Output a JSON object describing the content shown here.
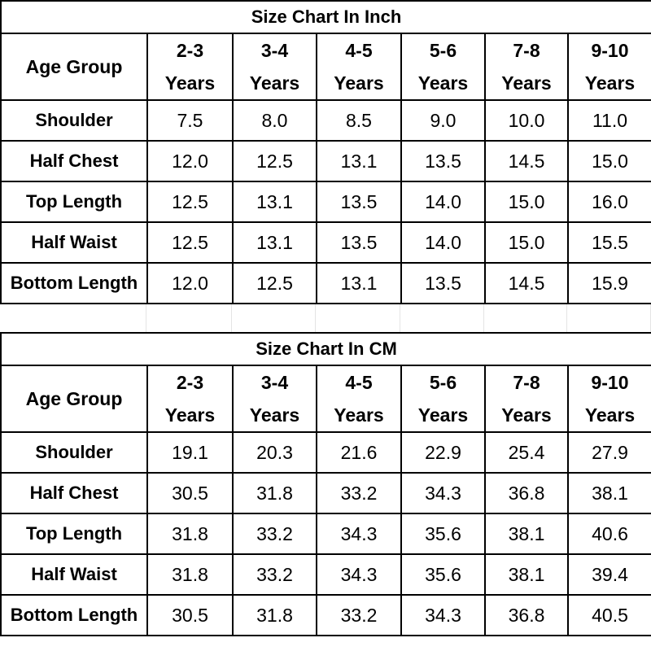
{
  "tables": [
    {
      "title": "Size Chart In Inch",
      "header": {
        "label": "Age Group",
        "columns": [
          "2-3 Years",
          "3-4 Years",
          "4-5 Years",
          "5-6 Years",
          "7-8 Years",
          "9-10 Years"
        ]
      },
      "rows": [
        {
          "label": "Shoulder",
          "values": [
            "7.5",
            "8.0",
            "8.5",
            "9.0",
            "10.0",
            "11.0"
          ]
        },
        {
          "label": "Half Chest",
          "values": [
            "12.0",
            "12.5",
            "13.1",
            "13.5",
            "14.5",
            "15.0"
          ]
        },
        {
          "label": "Top Length",
          "values": [
            "12.5",
            "13.1",
            "13.5",
            "14.0",
            "15.0",
            "16.0"
          ]
        },
        {
          "label": "Half Waist",
          "values": [
            "12.5",
            "13.1",
            "13.5",
            "14.0",
            "15.0",
            "15.5"
          ]
        },
        {
          "label": "Bottom Length",
          "values": [
            "12.0",
            "12.5",
            "13.1",
            "13.5",
            "14.5",
            "15.9"
          ]
        }
      ]
    },
    {
      "title": "Size Chart In CM",
      "header": {
        "label": "Age Group",
        "columns": [
          "2-3 Years",
          "3-4 Years",
          "4-5 Years",
          "5-6 Years",
          "7-8 Years",
          "9-10 Years"
        ]
      },
      "rows": [
        {
          "label": "Shoulder",
          "values": [
            "19.1",
            "20.3",
            "21.6",
            "22.9",
            "25.4",
            "27.9"
          ]
        },
        {
          "label": "Half Chest",
          "values": [
            "30.5",
            "31.8",
            "33.2",
            "34.3",
            "36.8",
            "38.1"
          ]
        },
        {
          "label": "Top Length",
          "values": [
            "31.8",
            "33.2",
            "34.3",
            "35.6",
            "38.1",
            "40.6"
          ]
        },
        {
          "label": "Half Waist",
          "values": [
            "31.8",
            "33.2",
            "34.3",
            "35.6",
            "38.1",
            "39.4"
          ]
        },
        {
          "label": "Bottom Length",
          "values": [
            "30.5",
            "31.8",
            "33.2",
            "34.3",
            "36.8",
            "40.5"
          ]
        }
      ]
    }
  ]
}
